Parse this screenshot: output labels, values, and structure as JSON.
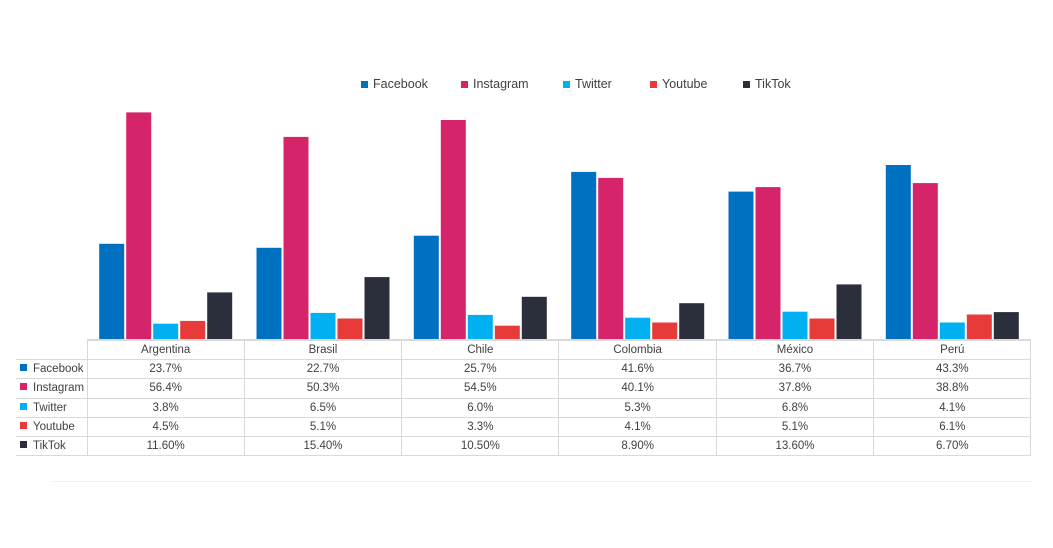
{
  "chart_data": {
    "type": "bar",
    "categories": [
      "Argentina",
      "Brasil",
      "Chile",
      "Colombia",
      "México",
      "Perú"
    ],
    "series": [
      {
        "name": "Facebook",
        "color": "#0070C0",
        "values": [
          23.7,
          22.7,
          25.7,
          41.6,
          36.7,
          43.3
        ],
        "labels": [
          "23.7%",
          "22.7%",
          "25.7%",
          "41.6%",
          "36.7%",
          "43.3%"
        ]
      },
      {
        "name": "Instagram",
        "color": "#D6246B",
        "values": [
          56.4,
          50.3,
          54.5,
          40.1,
          37.8,
          38.8
        ],
        "labels": [
          "56.4%",
          "50.3%",
          "54.5%",
          "40.1%",
          "37.8%",
          "38.8%"
        ]
      },
      {
        "name": "Twitter",
        "color": "#00B0F0",
        "values": [
          3.8,
          6.5,
          6.0,
          5.3,
          6.8,
          4.1
        ],
        "labels": [
          "3.8%",
          "6.5%",
          "6.0%",
          "5.3%",
          "6.8%",
          "4.1%"
        ]
      },
      {
        "name": "Youtube",
        "color": "#E63B38",
        "values": [
          4.5,
          5.1,
          3.3,
          4.1,
          5.1,
          6.1
        ],
        "labels": [
          "4.5%",
          "5.1%",
          "3.3%",
          "4.1%",
          "5.1%",
          "6.1%"
        ]
      },
      {
        "name": "TikTok",
        "color": "#2B2F3B",
        "values": [
          11.6,
          15.4,
          10.5,
          8.9,
          13.6,
          6.7
        ],
        "labels": [
          "11.60%",
          "15.40%",
          "10.50%",
          "8.90%",
          "13.60%",
          "6.70%"
        ]
      }
    ],
    "ylim": [
      0,
      57
    ],
    "legend_position": "top-center",
    "data_table": true,
    "grid": false
  }
}
